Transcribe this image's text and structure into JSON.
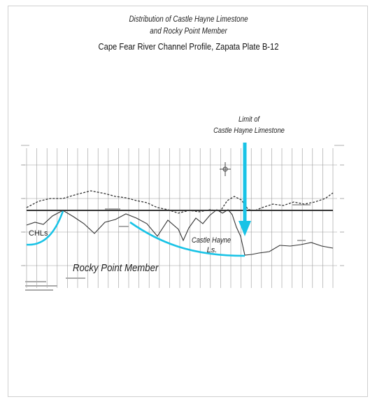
{
  "title": {
    "line1": "Distribution  of Castle Hayne Limestone",
    "line2": "and Rocky Point Member",
    "line3": "Cape Fear River Channel Profile, Zapata Plate B-12"
  },
  "labels": {
    "limit_line1": "Limit of",
    "limit_line2": "Castle Hayne Limestone",
    "castle_line1": "Castle Hayne",
    "castle_line2": "Ls.",
    "chls": "CHLs",
    "rocky_point": "Rocky Point Member"
  },
  "colors": {
    "highlight": "#19c3e6",
    "ink": "#333333",
    "grid": "#9a9a9a"
  }
}
